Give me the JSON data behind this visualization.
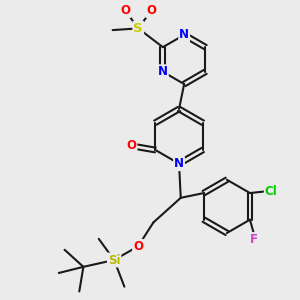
{
  "bg_color": "#ebebeb",
  "bond_color": "#1a1a1a",
  "bond_width": 1.5,
  "atom_colors": {
    "N": "#0000ff",
    "O": "#ff0000",
    "S": "#cccc00",
    "Si": "#b8b800",
    "Cl": "#00cc00",
    "F": "#cc44cc",
    "C": "#1a1a1a"
  },
  "font_size": 8.5
}
